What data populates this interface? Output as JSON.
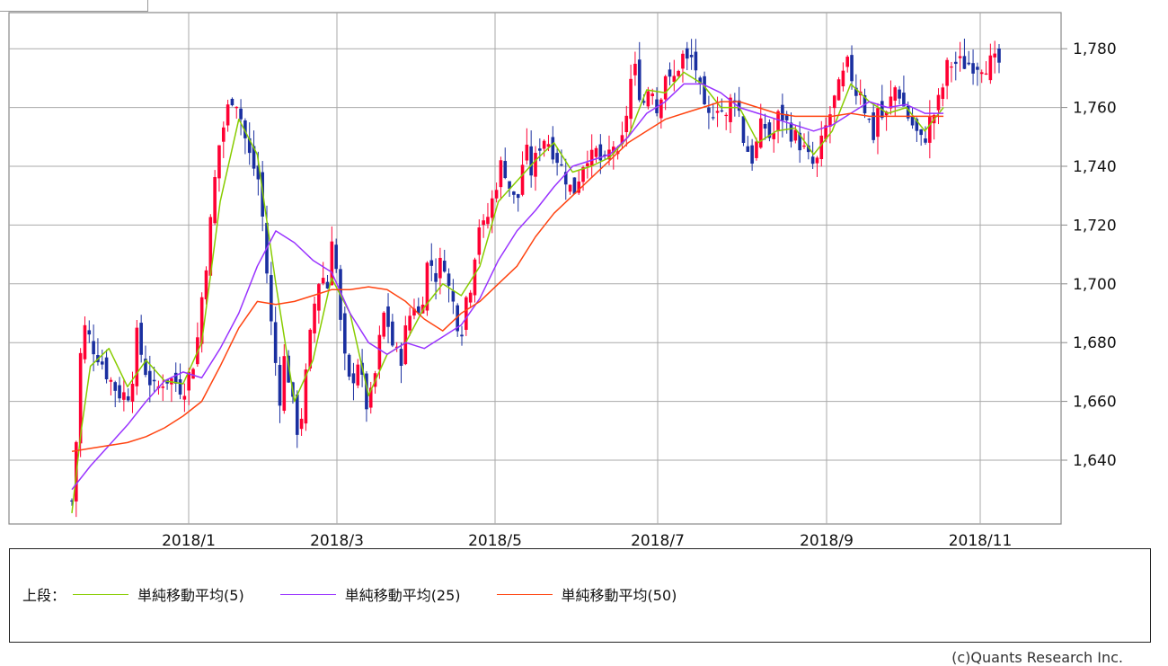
{
  "chart_data": {
    "type": "candlestick",
    "y_range": [
      1620,
      1790
    ],
    "y_ticks": [
      "1,640",
      "1,660",
      "1,680",
      "1,700",
      "1,720",
      "1,740",
      "1,760",
      "1,780"
    ],
    "y_tick_values": [
      1640,
      1660,
      1680,
      1700,
      1720,
      1740,
      1760,
      1780
    ],
    "x_ticks": [
      "2018/1",
      "2018/3",
      "2018/5",
      "2018/7",
      "2018/9",
      "2018/11"
    ],
    "grid": true,
    "up_color": "#ff0033",
    "down_color": "#1a2fa0",
    "close_path": [
      [
        0,
        1626
      ],
      [
        0.005,
        1648
      ],
      [
        0.01,
        1680
      ],
      [
        0.015,
        1686
      ],
      [
        0.02,
        1680
      ],
      [
        0.03,
        1675
      ],
      [
        0.04,
        1668
      ],
      [
        0.05,
        1663
      ],
      [
        0.06,
        1662
      ],
      [
        0.065,
        1668
      ],
      [
        0.07,
        1682
      ],
      [
        0.075,
        1676
      ],
      [
        0.08,
        1670
      ],
      [
        0.09,
        1663
      ],
      [
        0.1,
        1668
      ],
      [
        0.11,
        1667
      ],
      [
        0.12,
        1664
      ],
      [
        0.125,
        1668
      ],
      [
        0.13,
        1672
      ],
      [
        0.135,
        1680
      ],
      [
        0.14,
        1695
      ],
      [
        0.145,
        1708
      ],
      [
        0.15,
        1722
      ],
      [
        0.155,
        1738
      ],
      [
        0.16,
        1750
      ],
      [
        0.165,
        1755
      ],
      [
        0.17,
        1762
      ],
      [
        0.175,
        1765
      ],
      [
        0.18,
        1760
      ],
      [
        0.185,
        1752
      ],
      [
        0.19,
        1745
      ],
      [
        0.195,
        1740
      ],
      [
        0.2,
        1738
      ],
      [
        0.205,
        1725
      ],
      [
        0.21,
        1705
      ],
      [
        0.215,
        1686
      ],
      [
        0.22,
        1672
      ],
      [
        0.225,
        1660
      ],
      [
        0.23,
        1678
      ],
      [
        0.235,
        1665
      ],
      [
        0.24,
        1655
      ],
      [
        0.245,
        1648
      ],
      [
        0.25,
        1662
      ],
      [
        0.255,
        1676
      ],
      [
        0.26,
        1690
      ],
      [
        0.265,
        1700
      ],
      [
        0.27,
        1704
      ],
      [
        0.275,
        1696
      ],
      [
        0.28,
        1718
      ],
      [
        0.285,
        1705
      ],
      [
        0.29,
        1685
      ],
      [
        0.295,
        1672
      ],
      [
        0.3,
        1665
      ],
      [
        0.305,
        1670
      ],
      [
        0.31,
        1676
      ],
      [
        0.315,
        1660
      ],
      [
        0.32,
        1658
      ],
      [
        0.325,
        1665
      ],
      [
        0.33,
        1675
      ],
      [
        0.335,
        1690
      ],
      [
        0.34,
        1688
      ],
      [
        0.345,
        1680
      ],
      [
        0.35,
        1676
      ],
      [
        0.355,
        1675
      ],
      [
        0.36,
        1684
      ],
      [
        0.365,
        1690
      ],
      [
        0.37,
        1694
      ],
      [
        0.375,
        1688
      ],
      [
        0.38,
        1700
      ],
      [
        0.385,
        1710
      ],
      [
        0.39,
        1704
      ],
      [
        0.395,
        1702
      ],
      [
        0.4,
        1712
      ],
      [
        0.405,
        1700
      ],
      [
        0.41,
        1695
      ],
      [
        0.415,
        1688
      ],
      [
        0.42,
        1684
      ],
      [
        0.425,
        1695
      ],
      [
        0.43,
        1700
      ],
      [
        0.435,
        1712
      ],
      [
        0.44,
        1722
      ],
      [
        0.445,
        1718
      ],
      [
        0.45,
        1725
      ],
      [
        0.455,
        1730
      ],
      [
        0.46,
        1738
      ],
      [
        0.465,
        1742
      ],
      [
        0.47,
        1735
      ],
      [
        0.475,
        1730
      ],
      [
        0.48,
        1726
      ],
      [
        0.485,
        1740
      ],
      [
        0.49,
        1745
      ],
      [
        0.495,
        1738
      ],
      [
        0.5,
        1742
      ],
      [
        0.505,
        1748
      ],
      [
        0.51,
        1750
      ],
      [
        0.515,
        1748
      ],
      [
        0.52,
        1745
      ],
      [
        0.525,
        1742
      ],
      [
        0.53,
        1738
      ],
      [
        0.535,
        1735
      ],
      [
        0.54,
        1730
      ],
      [
        0.545,
        1735
      ],
      [
        0.55,
        1740
      ],
      [
        0.555,
        1745
      ],
      [
        0.56,
        1742
      ],
      [
        0.565,
        1745
      ],
      [
        0.57,
        1742
      ],
      [
        0.575,
        1740
      ],
      [
        0.58,
        1745
      ],
      [
        0.585,
        1748
      ],
      [
        0.59,
        1740
      ],
      [
        0.595,
        1752
      ],
      [
        0.6,
        1762
      ],
      [
        0.605,
        1775
      ],
      [
        0.61,
        1770
      ],
      [
        0.615,
        1760
      ],
      [
        0.62,
        1765
      ],
      [
        0.625,
        1770
      ],
      [
        0.63,
        1758
      ],
      [
        0.635,
        1765
      ],
      [
        0.64,
        1772
      ],
      [
        0.645,
        1768
      ],
      [
        0.65,
        1770
      ],
      [
        0.655,
        1775
      ],
      [
        0.66,
        1778
      ],
      [
        0.665,
        1774
      ],
      [
        0.67,
        1778
      ],
      [
        0.675,
        1770
      ],
      [
        0.68,
        1760
      ],
      [
        0.685,
        1755
      ],
      [
        0.69,
        1758
      ],
      [
        0.695,
        1762
      ],
      [
        0.7,
        1760
      ],
      [
        0.705,
        1755
      ],
      [
        0.71,
        1762
      ],
      [
        0.715,
        1765
      ],
      [
        0.72,
        1758
      ],
      [
        0.725,
        1748
      ],
      [
        0.73,
        1745
      ],
      [
        0.735,
        1742
      ],
      [
        0.74,
        1750
      ],
      [
        0.745,
        1755
      ],
      [
        0.75,
        1752
      ],
      [
        0.755,
        1748
      ],
      [
        0.76,
        1756
      ],
      [
        0.765,
        1758
      ],
      [
        0.77,
        1755
      ],
      [
        0.775,
        1752
      ],
      [
        0.78,
        1750
      ],
      [
        0.785,
        1748
      ],
      [
        0.79,
        1745
      ],
      [
        0.795,
        1742
      ],
      [
        0.8,
        1740
      ],
      [
        0.805,
        1742
      ],
      [
        0.81,
        1750
      ],
      [
        0.815,
        1755
      ],
      [
        0.82,
        1760
      ],
      [
        0.825,
        1765
      ],
      [
        0.83,
        1768
      ],
      [
        0.835,
        1775
      ],
      [
        0.84,
        1772
      ],
      [
        0.845,
        1765
      ],
      [
        0.85,
        1768
      ],
      [
        0.855,
        1760
      ],
      [
        0.86,
        1755
      ],
      [
        0.865,
        1750
      ],
      [
        0.87,
        1762
      ],
      [
        0.875,
        1755
      ],
      [
        0.88,
        1758
      ],
      [
        0.885,
        1765
      ],
      [
        0.89,
        1768
      ],
      [
        0.895,
        1762
      ],
      [
        0.9,
        1758
      ],
      [
        0.905,
        1755
      ],
      [
        0.91,
        1752
      ],
      [
        0.915,
        1748
      ],
      [
        0.92,
        1750
      ],
      [
        0.925,
        1755
      ],
      [
        0.93,
        1758
      ],
      [
        0.935,
        1762
      ],
      [
        0.94,
        1768
      ],
      [
        0.945,
        1775
      ]
    ],
    "moving_averages": [
      {
        "name": "単純移動平均(5)",
        "color": "#88cc00",
        "values": [
          [
            0,
            1622
          ],
          [
            0.01,
            1650
          ],
          [
            0.02,
            1672
          ],
          [
            0.04,
            1678
          ],
          [
            0.06,
            1665
          ],
          [
            0.08,
            1674
          ],
          [
            0.1,
            1667
          ],
          [
            0.12,
            1666
          ],
          [
            0.14,
            1680
          ],
          [
            0.16,
            1728
          ],
          [
            0.18,
            1756
          ],
          [
            0.2,
            1744
          ],
          [
            0.22,
            1700
          ],
          [
            0.24,
            1660
          ],
          [
            0.26,
            1674
          ],
          [
            0.28,
            1702
          ],
          [
            0.3,
            1690
          ],
          [
            0.32,
            1662
          ],
          [
            0.34,
            1676
          ],
          [
            0.36,
            1680
          ],
          [
            0.38,
            1692
          ],
          [
            0.4,
            1700
          ],
          [
            0.42,
            1696
          ],
          [
            0.44,
            1706
          ],
          [
            0.46,
            1728
          ],
          [
            0.48,
            1735
          ],
          [
            0.5,
            1742
          ],
          [
            0.52,
            1748
          ],
          [
            0.54,
            1738
          ],
          [
            0.56,
            1740
          ],
          [
            0.58,
            1743
          ],
          [
            0.6,
            1750
          ],
          [
            0.62,
            1766
          ],
          [
            0.64,
            1765
          ],
          [
            0.66,
            1772
          ],
          [
            0.68,
            1768
          ],
          [
            0.7,
            1760
          ],
          [
            0.72,
            1760
          ],
          [
            0.74,
            1748
          ],
          [
            0.76,
            1752
          ],
          [
            0.78,
            1753
          ],
          [
            0.8,
            1744
          ],
          [
            0.82,
            1752
          ],
          [
            0.84,
            1768
          ],
          [
            0.86,
            1762
          ],
          [
            0.88,
            1758
          ],
          [
            0.9,
            1760
          ],
          [
            0.92,
            1752
          ],
          [
            0.94,
            1760
          ]
        ]
      },
      {
        "name": "単純移動平均(25)",
        "color": "#9933ff",
        "values": [
          [
            0,
            1630
          ],
          [
            0.02,
            1638
          ],
          [
            0.04,
            1645
          ],
          [
            0.06,
            1652
          ],
          [
            0.08,
            1660
          ],
          [
            0.1,
            1667
          ],
          [
            0.12,
            1670
          ],
          [
            0.14,
            1668
          ],
          [
            0.16,
            1678
          ],
          [
            0.18,
            1690
          ],
          [
            0.2,
            1706
          ],
          [
            0.22,
            1718
          ],
          [
            0.24,
            1714
          ],
          [
            0.26,
            1708
          ],
          [
            0.28,
            1704
          ],
          [
            0.3,
            1690
          ],
          [
            0.32,
            1680
          ],
          [
            0.34,
            1676
          ],
          [
            0.36,
            1680
          ],
          [
            0.38,
            1678
          ],
          [
            0.4,
            1682
          ],
          [
            0.42,
            1686
          ],
          [
            0.44,
            1695
          ],
          [
            0.46,
            1708
          ],
          [
            0.48,
            1718
          ],
          [
            0.5,
            1725
          ],
          [
            0.52,
            1733
          ],
          [
            0.54,
            1740
          ],
          [
            0.56,
            1742
          ],
          [
            0.58,
            1744
          ],
          [
            0.6,
            1750
          ],
          [
            0.62,
            1758
          ],
          [
            0.64,
            1762
          ],
          [
            0.66,
            1768
          ],
          [
            0.68,
            1768
          ],
          [
            0.7,
            1765
          ],
          [
            0.72,
            1760
          ],
          [
            0.74,
            1758
          ],
          [
            0.76,
            1756
          ],
          [
            0.78,
            1754
          ],
          [
            0.8,
            1752
          ],
          [
            0.82,
            1754
          ],
          [
            0.84,
            1758
          ],
          [
            0.86,
            1762
          ],
          [
            0.88,
            1760
          ],
          [
            0.9,
            1761
          ],
          [
            0.92,
            1758
          ],
          [
            0.94,
            1758
          ]
        ]
      },
      {
        "name": "単純移動平均(50)",
        "color": "#ff4411",
        "values": [
          [
            0,
            1643
          ],
          [
            0.02,
            1644
          ],
          [
            0.04,
            1645
          ],
          [
            0.06,
            1646
          ],
          [
            0.08,
            1648
          ],
          [
            0.1,
            1651
          ],
          [
            0.12,
            1655
          ],
          [
            0.14,
            1660
          ],
          [
            0.16,
            1672
          ],
          [
            0.18,
            1685
          ],
          [
            0.2,
            1694
          ],
          [
            0.22,
            1693
          ],
          [
            0.24,
            1694
          ],
          [
            0.26,
            1696
          ],
          [
            0.28,
            1698
          ],
          [
            0.3,
            1698
          ],
          [
            0.32,
            1699
          ],
          [
            0.34,
            1698
          ],
          [
            0.36,
            1694
          ],
          [
            0.38,
            1688
          ],
          [
            0.4,
            1684
          ],
          [
            0.42,
            1690
          ],
          [
            0.44,
            1694
          ],
          [
            0.46,
            1700
          ],
          [
            0.48,
            1706
          ],
          [
            0.5,
            1716
          ],
          [
            0.52,
            1724
          ],
          [
            0.54,
            1730
          ],
          [
            0.56,
            1736
          ],
          [
            0.58,
            1742
          ],
          [
            0.6,
            1748
          ],
          [
            0.62,
            1752
          ],
          [
            0.64,
            1756
          ],
          [
            0.66,
            1758
          ],
          [
            0.68,
            1760
          ],
          [
            0.7,
            1762
          ],
          [
            0.72,
            1762
          ],
          [
            0.74,
            1760
          ],
          [
            0.76,
            1758
          ],
          [
            0.78,
            1757
          ],
          [
            0.8,
            1757
          ],
          [
            0.82,
            1757
          ],
          [
            0.84,
            1758
          ],
          [
            0.86,
            1757
          ],
          [
            0.88,
            1757
          ],
          [
            0.9,
            1757
          ],
          [
            0.92,
            1757
          ],
          [
            0.94,
            1757
          ]
        ]
      }
    ]
  },
  "legend": {
    "prefix": "上段：",
    "items": [
      {
        "label": "単純移動平均(5)",
        "color": "#88cc00"
      },
      {
        "label": "単純移動平均(25)",
        "color": "#9933ff"
      },
      {
        "label": "単純移動平均(50)",
        "color": "#ff4411"
      }
    ]
  },
  "credit": "(c)Quants Research Inc."
}
